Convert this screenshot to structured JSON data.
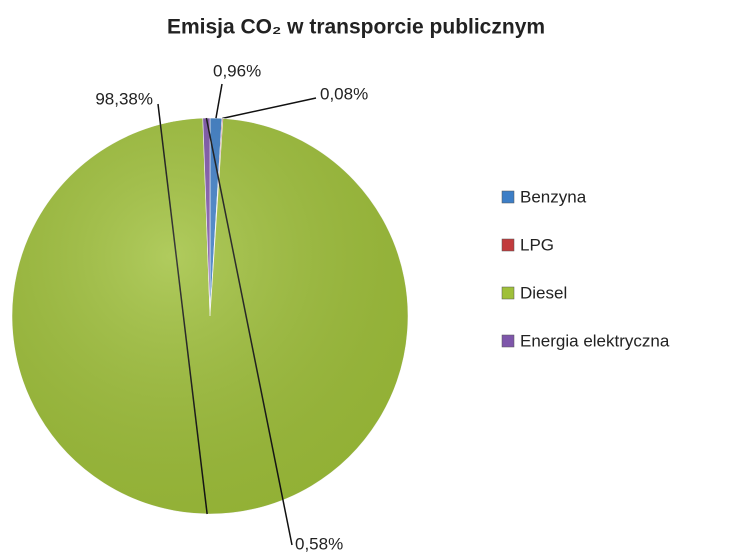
{
  "chart_data": {
    "type": "pie",
    "title": "Emisja CO₂ w transporcie publicznym",
    "categories": [
      "Benzyna",
      "LPG",
      "Diesel",
      "Energia elektryczna"
    ],
    "values": [
      0.96,
      0.08,
      98.38,
      0.58
    ],
    "value_labels": [
      "0,96%",
      "0,08%",
      "98,38%",
      "0,58%"
    ],
    "colors": [
      "#3d7ec6",
      "#c23b3d",
      "#9fc03a",
      "#7e56aa"
    ],
    "legend": "right"
  }
}
